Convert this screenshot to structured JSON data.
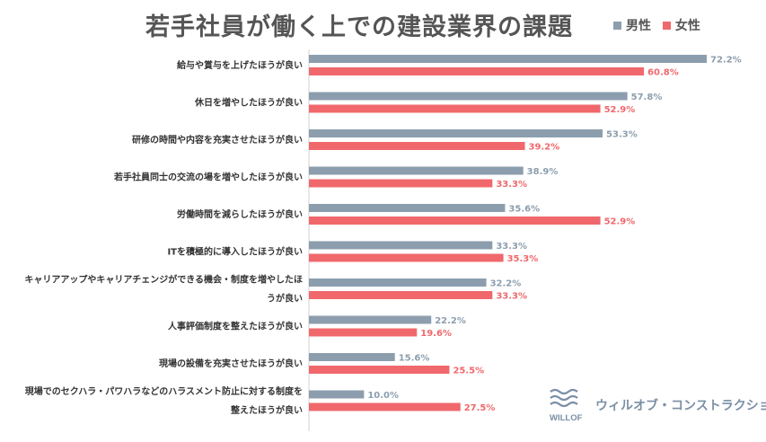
{
  "chart_data": {
    "type": "bar",
    "orientation": "horizontal",
    "title": "若手社員が働く上での建設業界の課題",
    "legend_position": "top-right",
    "xlim": [
      0,
      75
    ],
    "categories": [
      [
        "給与や賞与を上げたほうが良い"
      ],
      [
        "休日を増やしたほうが良い"
      ],
      [
        "研修の時間や内容を充実させたほうが良い"
      ],
      [
        "若手社員同士の交流の場を増やしたほうが良い"
      ],
      [
        "労働時間を減らしたほうが良い"
      ],
      [
        "ITを積極的に導入したほうが良い"
      ],
      [
        "キャリアアップやキャリアチェンジができる機会・制度を増やしたほ",
        "うが良い"
      ],
      [
        "人事評価制度を整えたほうが良い"
      ],
      [
        "現場の設備を充実させたほうが良い"
      ],
      [
        "現場でのセクハラ・パワハラなどのハラスメント防止に対する制度を",
        "整えたほうが良い"
      ]
    ],
    "series": [
      {
        "name": "男性",
        "color": "#8c9eae",
        "values": [
          72.2,
          57.8,
          53.3,
          38.9,
          35.6,
          33.3,
          32.2,
          22.2,
          15.6,
          10.0
        ],
        "labels": [
          "72.2%",
          "57.8%",
          "53.3%",
          "38.9%",
          "35.6%",
          "33.3%",
          "32.2%",
          "22.2%",
          "15.6%",
          "10.0%"
        ]
      },
      {
        "name": "女性",
        "color": "#f0686c",
        "values": [
          60.8,
          52.9,
          39.2,
          33.3,
          52.9,
          35.3,
          33.3,
          19.6,
          25.5,
          27.5
        ],
        "labels": [
          "60.8%",
          "52.9%",
          "39.2%",
          "33.3%",
          "52.9%",
          "35.3%",
          "33.3%",
          "19.6%",
          "25.5%",
          "27.5%"
        ]
      }
    ],
    "highlight_index": 2
  },
  "branding": {
    "logo_text": "ウィルオブ・コンストラクション",
    "logo_mark_text": "WILLOF",
    "logo_color": "#7a8fa6"
  }
}
